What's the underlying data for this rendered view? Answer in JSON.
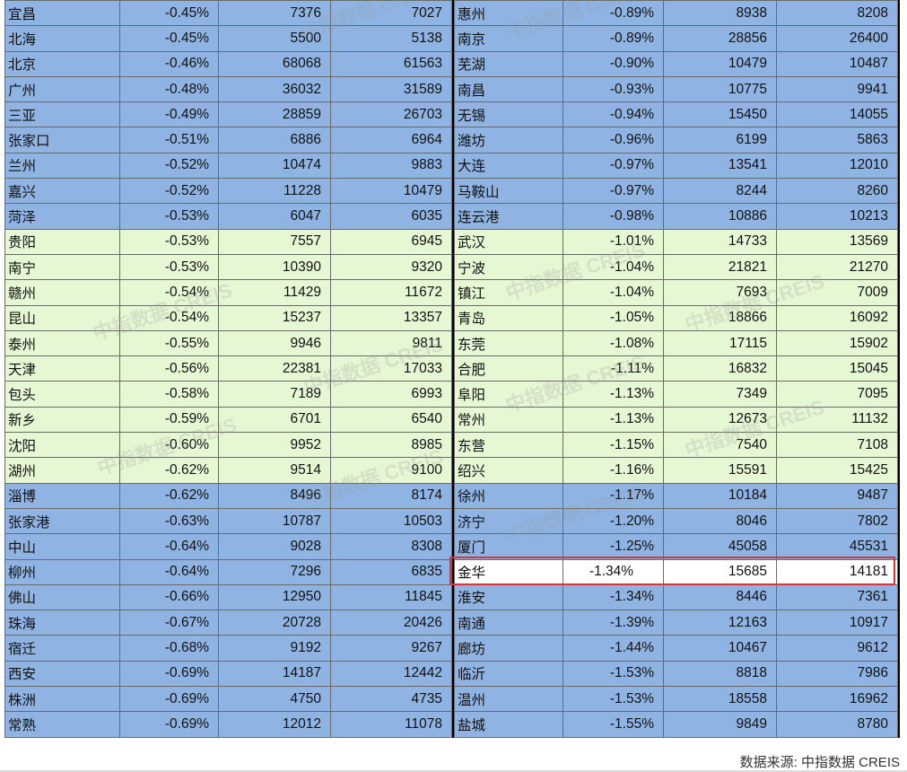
{
  "watermark_text": "中指数据 CREIS",
  "source": "数据来源:  中指数据 CREIS",
  "colors": {
    "blue_rows": "#8fb4e3",
    "green_rows": "#e6f7d4",
    "highlight_border": "#d9343a"
  },
  "left_rows": [
    {
      "city": "宜昌",
      "change": "-0.45%",
      "v1": "7376",
      "v2": "7027",
      "style": "blue"
    },
    {
      "city": "北海",
      "change": "-0.45%",
      "v1": "5500",
      "v2": "5138",
      "style": "blue"
    },
    {
      "city": "北京",
      "change": "-0.46%",
      "v1": "68068",
      "v2": "61563",
      "style": "blue"
    },
    {
      "city": "广州",
      "change": "-0.48%",
      "v1": "36032",
      "v2": "31589",
      "style": "blue"
    },
    {
      "city": "三亚",
      "change": "-0.49%",
      "v1": "28859",
      "v2": "26703",
      "style": "blue"
    },
    {
      "city": "张家口",
      "change": "-0.51%",
      "v1": "6886",
      "v2": "6964",
      "style": "blue"
    },
    {
      "city": "兰州",
      "change": "-0.52%",
      "v1": "10474",
      "v2": "9883",
      "style": "blue"
    },
    {
      "city": "嘉兴",
      "change": "-0.52%",
      "v1": "11228",
      "v2": "10479",
      "style": "blue"
    },
    {
      "city": "菏泽",
      "change": "-0.53%",
      "v1": "6047",
      "v2": "6035",
      "style": "blue"
    },
    {
      "city": "贵阳",
      "change": "-0.53%",
      "v1": "7557",
      "v2": "6945",
      "style": "green"
    },
    {
      "city": "南宁",
      "change": "-0.53%",
      "v1": "10390",
      "v2": "9320",
      "style": "green"
    },
    {
      "city": "赣州",
      "change": "-0.54%",
      "v1": "11429",
      "v2": "11672",
      "style": "green"
    },
    {
      "city": "昆山",
      "change": "-0.54%",
      "v1": "15237",
      "v2": "13357",
      "style": "green"
    },
    {
      "city": "泰州",
      "change": "-0.55%",
      "v1": "9946",
      "v2": "9811",
      "style": "green"
    },
    {
      "city": "天津",
      "change": "-0.56%",
      "v1": "22381",
      "v2": "17033",
      "style": "green"
    },
    {
      "city": "包头",
      "change": "-0.58%",
      "v1": "7189",
      "v2": "6993",
      "style": "green"
    },
    {
      "city": "新乡",
      "change": "-0.59%",
      "v1": "6701",
      "v2": "6540",
      "style": "green"
    },
    {
      "city": "沈阳",
      "change": "-0.60%",
      "v1": "9952",
      "v2": "8985",
      "style": "green"
    },
    {
      "city": "湖州",
      "change": "-0.62%",
      "v1": "9514",
      "v2": "9100",
      "style": "green"
    },
    {
      "city": "淄博",
      "change": "-0.62%",
      "v1": "8496",
      "v2": "8174",
      "style": "blue"
    },
    {
      "city": "张家港",
      "change": "-0.63%",
      "v1": "10787",
      "v2": "10503",
      "style": "blue"
    },
    {
      "city": "中山",
      "change": "-0.64%",
      "v1": "9028",
      "v2": "8308",
      "style": "blue"
    },
    {
      "city": "柳州",
      "change": "-0.64%",
      "v1": "7296",
      "v2": "6835",
      "style": "blue"
    },
    {
      "city": "佛山",
      "change": "-0.66%",
      "v1": "12950",
      "v2": "11845",
      "style": "blue"
    },
    {
      "city": "珠海",
      "change": "-0.67%",
      "v1": "20728",
      "v2": "20426",
      "style": "blue"
    },
    {
      "city": "宿迁",
      "change": "-0.68%",
      "v1": "9192",
      "v2": "9267",
      "style": "blue"
    },
    {
      "city": "西安",
      "change": "-0.69%",
      "v1": "14187",
      "v2": "12442",
      "style": "blue"
    },
    {
      "city": "株洲",
      "change": "-0.69%",
      "v1": "4750",
      "v2": "4735",
      "style": "blue"
    },
    {
      "city": "常熟",
      "change": "-0.69%",
      "v1": "12012",
      "v2": "11078",
      "style": "blue"
    }
  ],
  "right_rows": [
    {
      "city": "惠州",
      "change": "-0.89%",
      "v1": "8938",
      "v2": "8208",
      "style": "blue"
    },
    {
      "city": "南京",
      "change": "-0.89%",
      "v1": "28856",
      "v2": "26400",
      "style": "blue"
    },
    {
      "city": "芜湖",
      "change": "-0.90%",
      "v1": "10479",
      "v2": "10487",
      "style": "blue"
    },
    {
      "city": "南昌",
      "change": "-0.93%",
      "v1": "10775",
      "v2": "9941",
      "style": "blue"
    },
    {
      "city": "无锡",
      "change": "-0.94%",
      "v1": "15450",
      "v2": "14055",
      "style": "blue"
    },
    {
      "city": "潍坊",
      "change": "-0.96%",
      "v1": "6199",
      "v2": "5863",
      "style": "blue"
    },
    {
      "city": "大连",
      "change": "-0.97%",
      "v1": "13541",
      "v2": "12010",
      "style": "blue"
    },
    {
      "city": "马鞍山",
      "change": "-0.97%",
      "v1": "8244",
      "v2": "8260",
      "style": "blue"
    },
    {
      "city": "连云港",
      "change": "-0.98%",
      "v1": "10886",
      "v2": "10213",
      "style": "blue"
    },
    {
      "city": "武汉",
      "change": "-1.01%",
      "v1": "14733",
      "v2": "13569",
      "style": "green"
    },
    {
      "city": "宁波",
      "change": "-1.04%",
      "v1": "21821",
      "v2": "21270",
      "style": "green"
    },
    {
      "city": "镇江",
      "change": "-1.04%",
      "v1": "7693",
      "v2": "7009",
      "style": "green"
    },
    {
      "city": "青岛",
      "change": "-1.05%",
      "v1": "18866",
      "v2": "16092",
      "style": "green"
    },
    {
      "city": "东莞",
      "change": "-1.08%",
      "v1": "17115",
      "v2": "15902",
      "style": "green"
    },
    {
      "city": "合肥",
      "change": "-1.11%",
      "v1": "16832",
      "v2": "15045",
      "style": "green"
    },
    {
      "city": "阜阳",
      "change": "-1.13%",
      "v1": "7349",
      "v2": "7095",
      "style": "green"
    },
    {
      "city": "常州",
      "change": "-1.13%",
      "v1": "12673",
      "v2": "11132",
      "style": "green"
    },
    {
      "city": "东营",
      "change": "-1.15%",
      "v1": "7540",
      "v2": "7108",
      "style": "green"
    },
    {
      "city": "绍兴",
      "change": "-1.16%",
      "v1": "15591",
      "v2": "15425",
      "style": "green"
    },
    {
      "city": "徐州",
      "change": "-1.17%",
      "v1": "10184",
      "v2": "9487",
      "style": "blue"
    },
    {
      "city": "济宁",
      "change": "-1.20%",
      "v1": "8046",
      "v2": "7802",
      "style": "blue"
    },
    {
      "city": "厦门",
      "change": "-1.25%",
      "v1": "45058",
      "v2": "45531",
      "style": "blue"
    },
    {
      "city": "金华",
      "change": "-1.34%",
      "v1": "15685",
      "v2": "14181",
      "style": "hl"
    },
    {
      "city": "淮安",
      "change": "-1.34%",
      "v1": "8446",
      "v2": "7361",
      "style": "blue"
    },
    {
      "city": "南通",
      "change": "-1.39%",
      "v1": "12163",
      "v2": "10917",
      "style": "blue"
    },
    {
      "city": "廊坊",
      "change": "-1.44%",
      "v1": "10467",
      "v2": "9612",
      "style": "blue"
    },
    {
      "city": "临沂",
      "change": "-1.53%",
      "v1": "8818",
      "v2": "7986",
      "style": "blue"
    },
    {
      "city": "温州",
      "change": "-1.53%",
      "v1": "18558",
      "v2": "16962",
      "style": "blue"
    },
    {
      "city": "盐城",
      "change": "-1.55%",
      "v1": "9849",
      "v2": "8780",
      "style": "blue"
    }
  ]
}
